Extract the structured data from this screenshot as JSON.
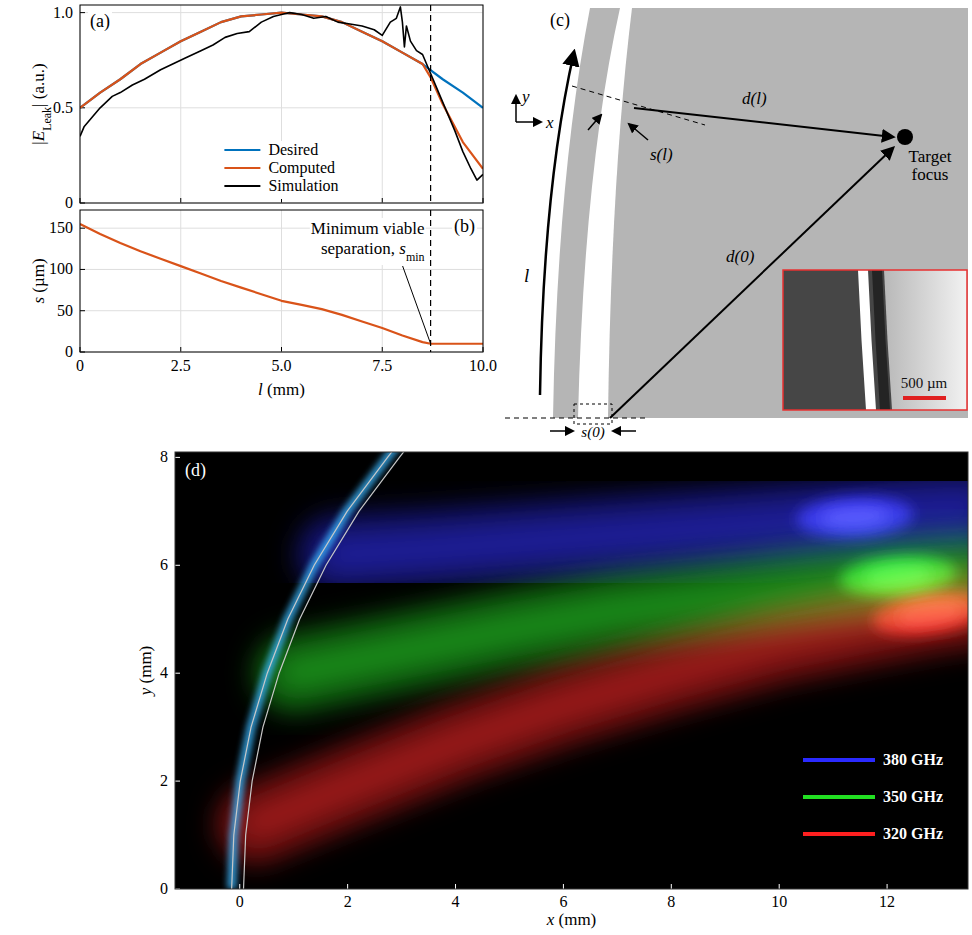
{
  "chart_data": [
    {
      "type": "line",
      "title": "(a)",
      "ylabel": [
        {
          "text": "|"
        },
        {
          "text": "E",
          "style": "italic"
        },
        {
          "text": "Leak",
          "style": "sub"
        },
        {
          "text": "| (a.u.)"
        }
      ],
      "xlim": [
        0,
        10
      ],
      "ylim": [
        0,
        1.04
      ],
      "xticks": [
        0,
        2.5,
        5,
        7.5,
        10
      ],
      "yticks": [
        0,
        0.5,
        {
          "value": 1,
          "label": "1.0"
        }
      ],
      "grid": true,
      "tick_labels": "y",
      "legend": "lower center",
      "vline": 8.7,
      "series": [
        {
          "name": "Desired",
          "color": "#0072bd",
          "x": [
            0,
            0.5,
            1,
            1.5,
            2,
            2.5,
            3,
            3.5,
            4,
            4.5,
            5,
            5.5,
            6,
            6.5,
            7,
            7.5,
            8,
            8.5,
            9,
            9.5,
            10
          ],
          "values": [
            0.5,
            0.58,
            0.65,
            0.73,
            0.79,
            0.85,
            0.9,
            0.95,
            0.98,
            0.99,
            1.0,
            0.99,
            0.98,
            0.95,
            0.9,
            0.85,
            0.79,
            0.73,
            0.65,
            0.58,
            0.5
          ]
        },
        {
          "name": "Computed",
          "color": "#d95319",
          "x": [
            0,
            0.5,
            1,
            1.5,
            2,
            2.5,
            3,
            3.5,
            4,
            4.5,
            5,
            5.5,
            6,
            6.5,
            7,
            7.5,
            8,
            8.5,
            8.7,
            9,
            9.5,
            10
          ],
          "values": [
            0.5,
            0.58,
            0.65,
            0.73,
            0.79,
            0.85,
            0.9,
            0.95,
            0.98,
            0.99,
            1.0,
            0.99,
            0.98,
            0.95,
            0.9,
            0.85,
            0.79,
            0.73,
            0.66,
            0.52,
            0.32,
            0.18
          ]
        },
        {
          "name": "Simulation",
          "color": "#000000",
          "x": [
            0,
            0.1,
            0.3,
            0.5,
            0.8,
            1.0,
            1.3,
            1.6,
            2.0,
            2.3,
            2.6,
            3.0,
            3.3,
            3.6,
            3.9,
            4.2,
            4.5,
            4.8,
            5.0,
            5.2,
            5.5,
            5.8,
            6.1,
            6.4,
            6.7,
            7.0,
            7.3,
            7.5,
            7.7,
            7.85,
            7.95,
            8.0,
            8.05,
            8.1,
            8.2,
            8.35,
            8.5,
            8.7,
            8.9,
            9.1,
            9.3,
            9.5,
            9.7,
            9.85,
            10.0
          ],
          "values": [
            0.35,
            0.4,
            0.45,
            0.5,
            0.56,
            0.58,
            0.62,
            0.65,
            0.7,
            0.73,
            0.76,
            0.8,
            0.83,
            0.87,
            0.89,
            0.9,
            0.95,
            0.98,
            0.99,
            1.0,
            0.99,
            0.97,
            0.98,
            0.95,
            0.94,
            0.93,
            0.91,
            0.88,
            0.95,
            0.97,
            1.03,
            0.95,
            0.82,
            0.93,
            0.85,
            0.8,
            0.78,
            0.68,
            0.58,
            0.48,
            0.38,
            0.27,
            0.18,
            0.12,
            0.15
          ]
        }
      ]
    },
    {
      "type": "line",
      "title": "(b)",
      "xlabel": [
        {
          "text": "l",
          "style": "italic"
        },
        {
          "text": " (mm)"
        }
      ],
      "ylabel": [
        {
          "text": "s",
          "style": "italic"
        },
        {
          "text": " (µm)"
        }
      ],
      "xlim": [
        0,
        10
      ],
      "ylim": [
        0,
        172
      ],
      "xticks": [
        0,
        2.5,
        {
          "value": 5,
          "label": "5.0"
        },
        7.5,
        {
          "value": 10,
          "label": "10.0"
        }
      ],
      "yticks": [
        0,
        50,
        100,
        150
      ],
      "grid": true,
      "vline": 8.7,
      "annotation": {
        "parts": [
          {
            "text": "Minimum viable"
          },
          {
            "text": "separation, "
          },
          {
            "text": "s",
            "style": "italic"
          },
          {
            "text": "min",
            "style": "sub"
          }
        ],
        "x": 8.7,
        "y": 10
      },
      "series": [
        {
          "color": "#d95319",
          "x": [
            0,
            0.5,
            1,
            1.5,
            2,
            2.5,
            3,
            3.5,
            4,
            4.5,
            5,
            5.5,
            6,
            6.5,
            7,
            7.5,
            8,
            8.5,
            8.7,
            9,
            9.5,
            10
          ],
          "values": [
            155,
            143,
            132,
            122,
            113,
            104,
            95,
            86,
            78,
            70,
            62,
            57,
            52,
            45,
            37,
            29,
            20,
            12,
            10,
            10,
            10,
            10
          ]
        }
      ]
    },
    {
      "type": "field",
      "title": "(d)",
      "xlabel": [
        {
          "text": "x",
          "style": "italic"
        },
        {
          "text": " (mm)"
        }
      ],
      "ylabel": [
        {
          "text": "y",
          "style": "italic"
        },
        {
          "text": " (mm)"
        }
      ],
      "xlim": [
        -1.2,
        13.5
      ],
      "ylim": [
        0,
        8.1
      ],
      "xticks": [
        0,
        2,
        4,
        6,
        8,
        10,
        12
      ],
      "yticks": [
        0,
        2,
        4,
        6,
        8
      ],
      "legend": "lower right",
      "guide_edges": [
        {
          "x": [
            -0.15,
            -0.11,
            0.01,
            0.21,
            0.51,
            0.89,
            1.38,
            1.99,
            2.74,
            3.05
          ],
          "y": [
            0,
            1,
            2,
            3,
            4,
            5,
            6,
            7,
            8,
            8.4
          ]
        },
        {
          "x": [
            0.07,
            0.11,
            0.23,
            0.43,
            0.73,
            1.11,
            1.6,
            2.21,
            2.96,
            3.27
          ],
          "y": [
            0,
            1,
            2,
            3,
            4,
            5,
            6,
            7,
            8,
            8.4
          ]
        }
      ],
      "series": [
        {
          "name": "380 GHz",
          "color": "#2a2aff",
          "x": [
            1.8,
            3.5,
            5.5,
            7.5,
            9.5,
            11.4,
            12.5,
            13.5
          ],
          "values": [
            6.2,
            6.3,
            6.45,
            6.6,
            6.75,
            6.9,
            7.0,
            7.05
          ],
          "focus_x": 11.4,
          "focus_y": 6.9
        },
        {
          "name": "350 GHz",
          "color": "#22e022",
          "x": [
            1.0,
            3,
            5,
            7,
            9,
            10.5,
            12.2,
            13.5
          ],
          "values": [
            4.0,
            4.4,
            4.8,
            5.15,
            5.4,
            5.6,
            5.8,
            5.9
          ],
          "focus_x": 12.2,
          "focus_y": 5.8
        },
        {
          "name": "320 GHz",
          "color": "#ff2020",
          "x": [
            0.3,
            2,
            4,
            6,
            8,
            10,
            11.5,
            12.8,
            13.5
          ],
          "values": [
            1.2,
            1.9,
            2.7,
            3.4,
            4.0,
            4.55,
            4.85,
            5.1,
            5.2
          ],
          "focus_x": 12.8,
          "focus_y": 5.1
        }
      ]
    }
  ],
  "diagram_c": {
    "label": "(c)",
    "axis_y": "y",
    "axis_x": "x",
    "arc_length": "l",
    "sep_l": "s(l)",
    "dist_l": "d(l)",
    "dist_0": "d(0)",
    "target": "Target focus",
    "sep_0": "s(0)",
    "scale_bar": "500 µm"
  }
}
